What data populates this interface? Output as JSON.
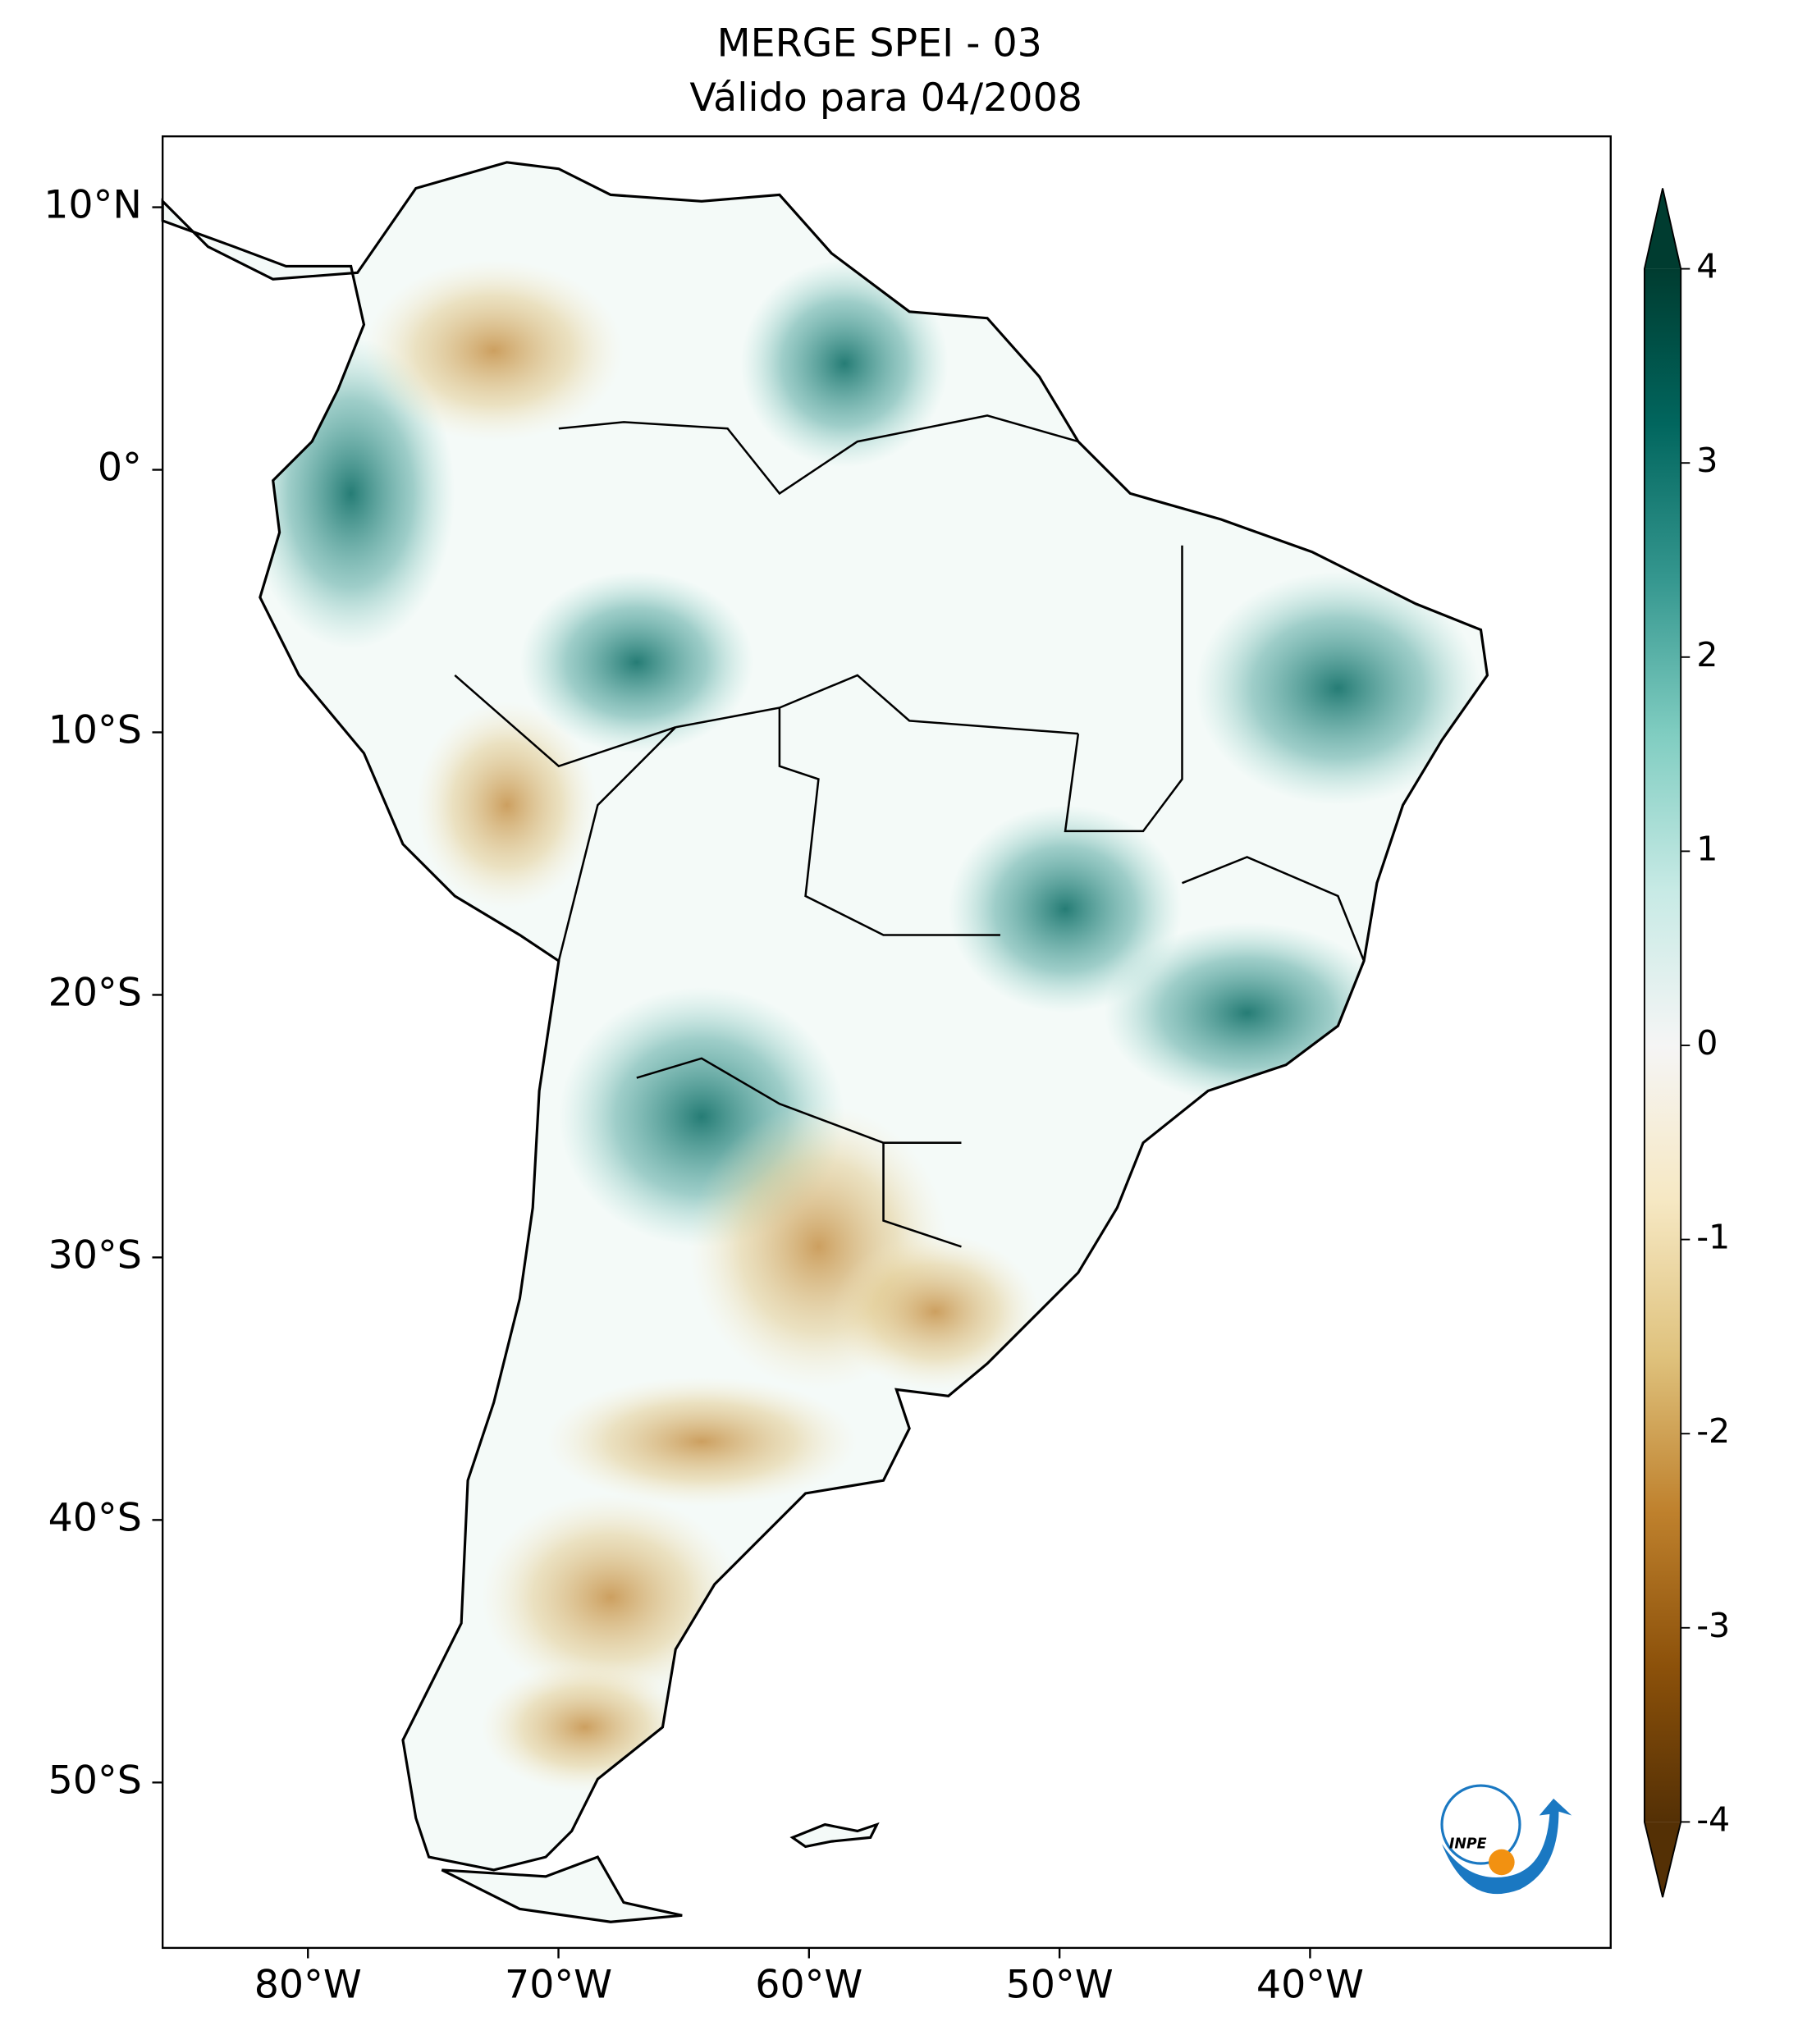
{
  "map": {
    "title": "MERGE   SPEI - 03",
    "subtitle": "Válido para 04/2008",
    "xlim": [
      -85.8,
      -28
    ],
    "ylim": [
      -56.3,
      12.7
    ],
    "xticks": [
      {
        "value": -80,
        "label": "80°W"
      },
      {
        "value": -70,
        "label": "70°W"
      },
      {
        "value": -60,
        "label": "60°W"
      },
      {
        "value": -50,
        "label": "50°W"
      },
      {
        "value": -40,
        "label": "40°W"
      }
    ],
    "yticks": [
      {
        "value": 10,
        "label": "10°N"
      },
      {
        "value": 0,
        "label": "0°"
      },
      {
        "value": -10,
        "label": "10°S"
      },
      {
        "value": -20,
        "label": "20°S"
      },
      {
        "value": -30,
        "label": "30°S"
      },
      {
        "value": -40,
        "label": "40°S"
      },
      {
        "value": -50,
        "label": "50°S"
      }
    ],
    "colorbar": {
      "lim": [
        -4,
        4
      ],
      "ticks": [
        4,
        3,
        2,
        1,
        0,
        -1,
        -2,
        -3,
        -4
      ],
      "colors": [
        "#543005",
        "#8c510a",
        "#bf812d",
        "#dfc27d",
        "#f6e8c3",
        "#f5f5f5",
        "#c7eae5",
        "#80cdc1",
        "#35978f",
        "#01665e",
        "#003c30"
      ]
    },
    "logo": "INPE"
  }
}
